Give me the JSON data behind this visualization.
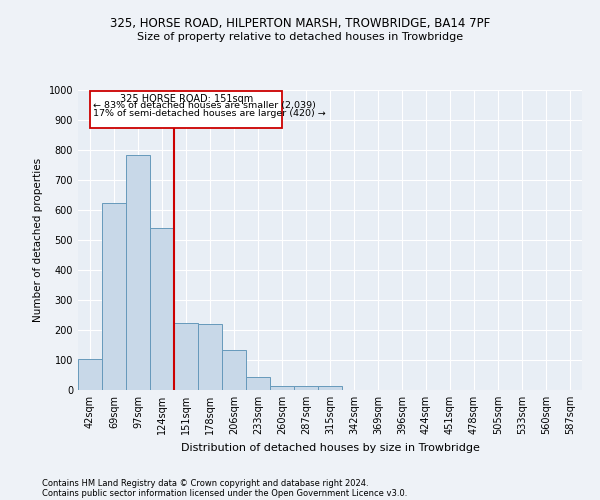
{
  "title1": "325, HORSE ROAD, HILPERTON MARSH, TROWBRIDGE, BA14 7PF",
  "title2": "Size of property relative to detached houses in Trowbridge",
  "xlabel": "Distribution of detached houses by size in Trowbridge",
  "ylabel": "Number of detached properties",
  "bar_color": "#c8d8e8",
  "bar_edge_color": "#6699bb",
  "vline_color": "#cc0000",
  "annotation_title": "325 HORSE ROAD: 151sqm",
  "annotation_line1": "← 83% of detached houses are smaller (2,039)",
  "annotation_line2": "17% of semi-detached houses are larger (420) →",
  "categories": [
    "42sqm",
    "69sqm",
    "97sqm",
    "124sqm",
    "151sqm",
    "178sqm",
    "206sqm",
    "233sqm",
    "260sqm",
    "287sqm",
    "315sqm",
    "342sqm",
    "369sqm",
    "396sqm",
    "424sqm",
    "451sqm",
    "478sqm",
    "505sqm",
    "533sqm",
    "560sqm",
    "587sqm"
  ],
  "values": [
    103,
    625,
    785,
    540,
    222,
    220,
    132,
    42,
    15,
    12,
    12,
    0,
    0,
    0,
    0,
    0,
    0,
    0,
    0,
    0,
    0
  ],
  "ylim": [
    0,
    1000
  ],
  "yticks": [
    0,
    100,
    200,
    300,
    400,
    500,
    600,
    700,
    800,
    900,
    1000
  ],
  "footer1": "Contains HM Land Registry data © Crown copyright and database right 2024.",
  "footer2": "Contains public sector information licensed under the Open Government Licence v3.0.",
  "background_color": "#eef2f7",
  "plot_bg_color": "#e8eef5"
}
